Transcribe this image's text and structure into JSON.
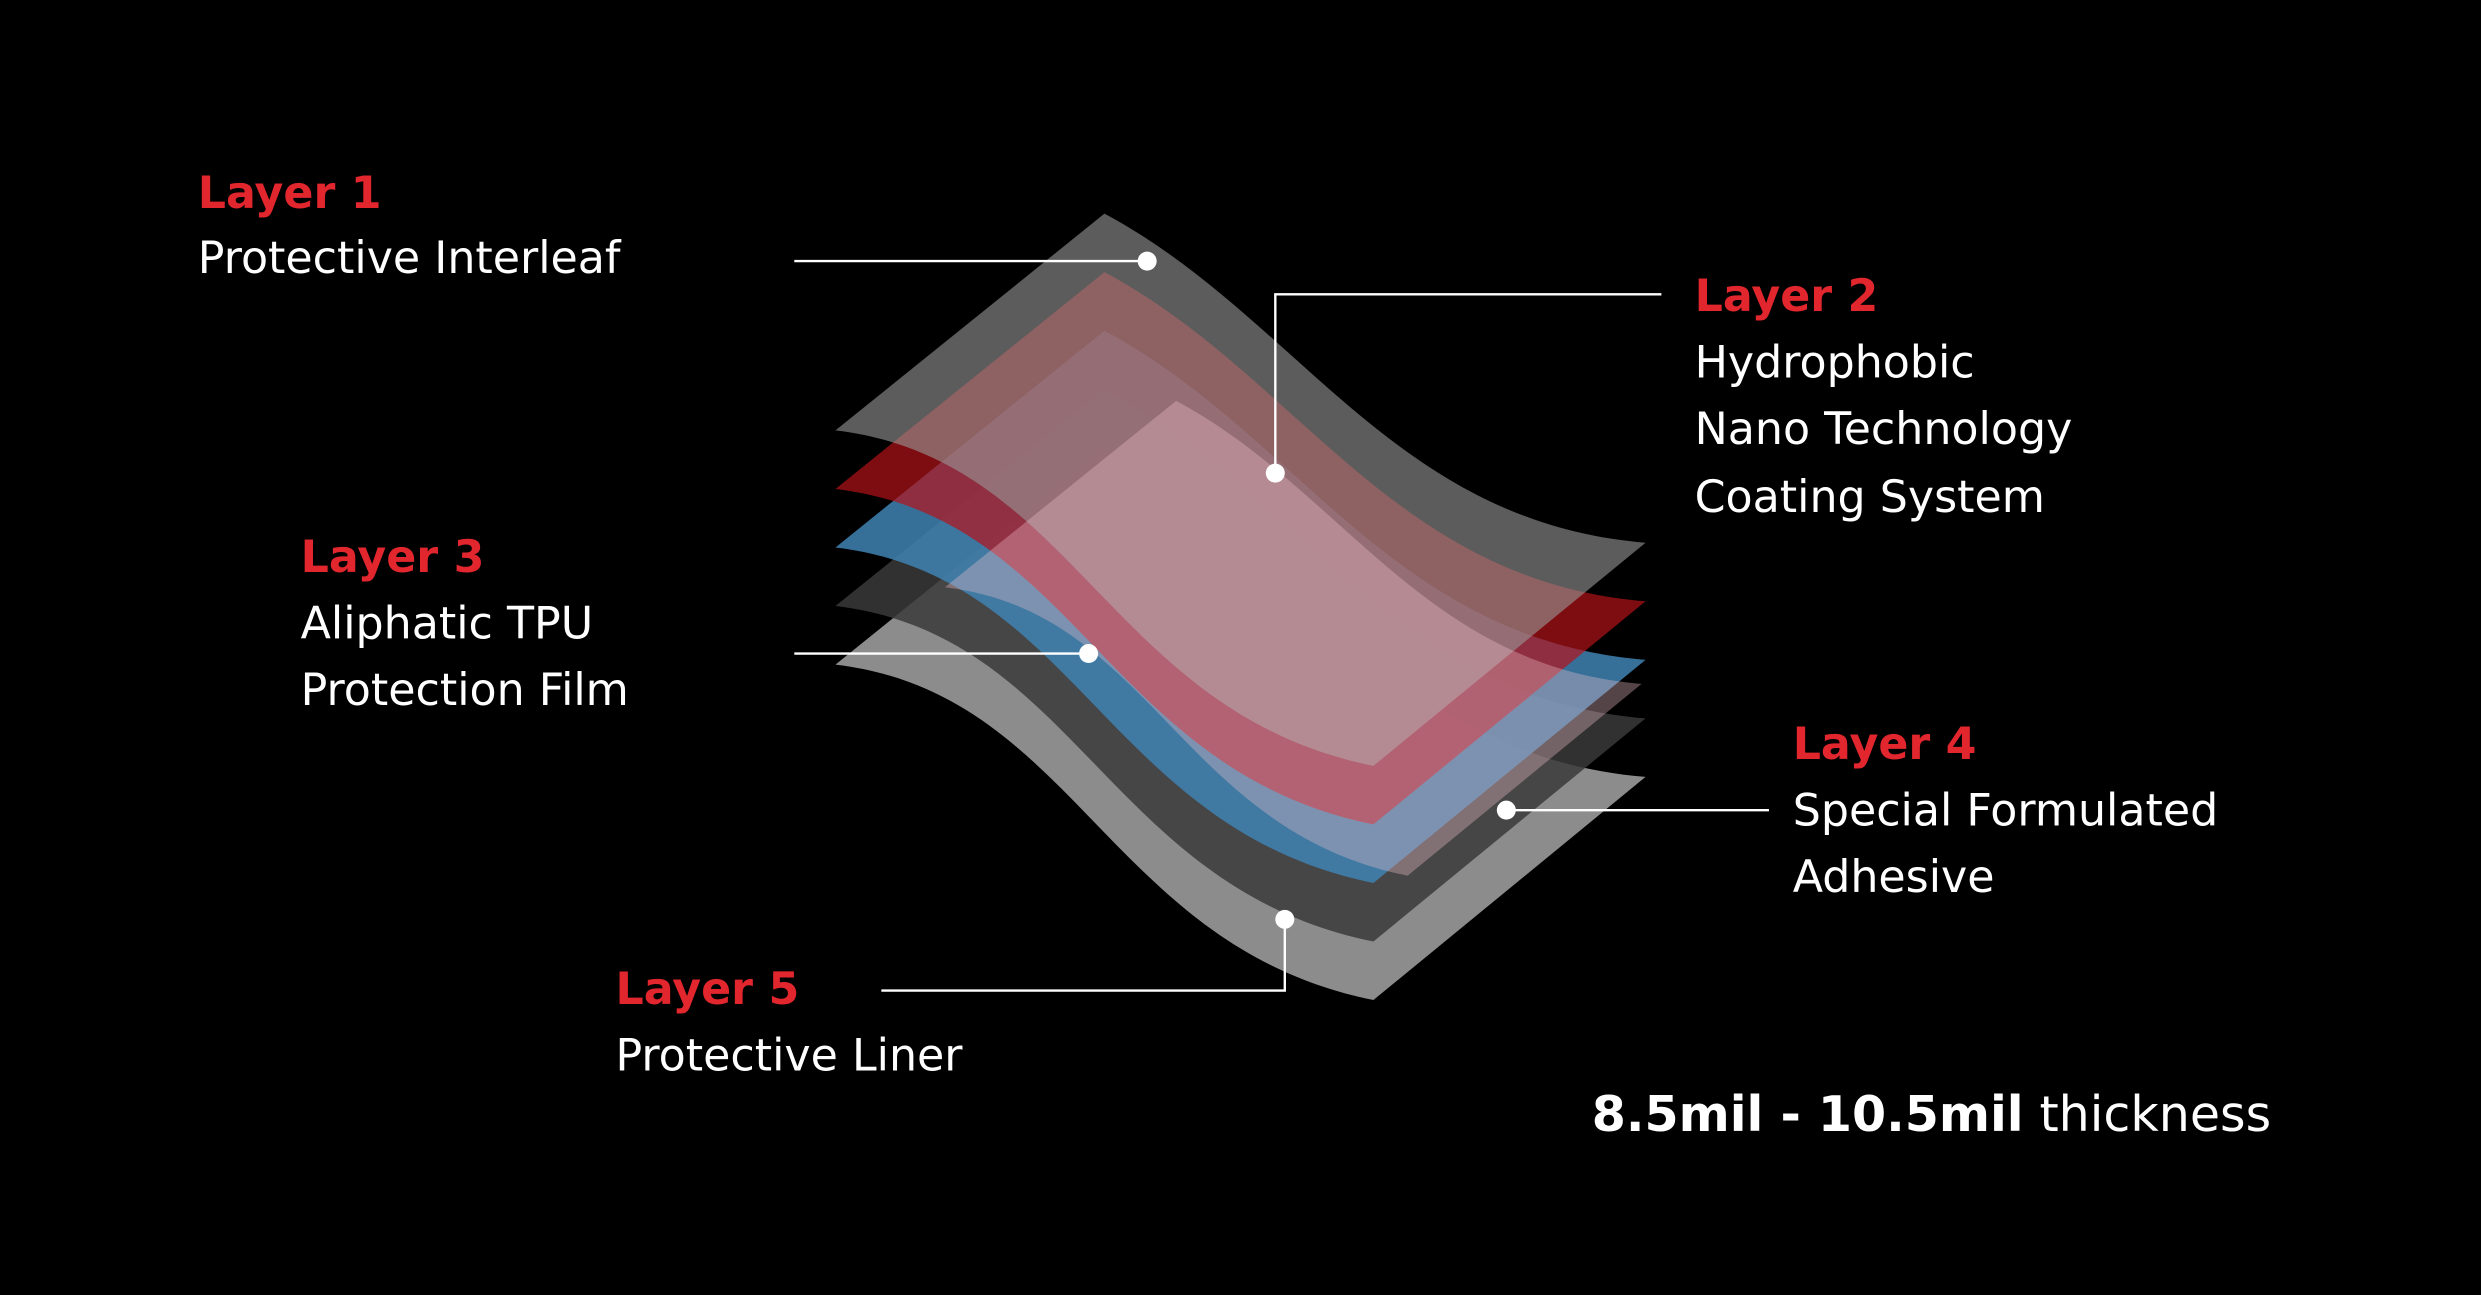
{
  "layers": [
    {
      "label": "Layer 1",
      "description": [
        "Protective Interleaf"
      ]
    },
    {
      "label": "Layer 2",
      "description": [
        "Hydrophobic",
        "Nano Technology",
        "Coating System"
      ]
    },
    {
      "label": "Layer 3",
      "description": [
        "Aliphatic TPU",
        "Protection Film"
      ]
    },
    {
      "label": "Layer 4",
      "description": [
        "Special Formulated",
        "Adhesive"
      ]
    },
    {
      "label": "Layer 5",
      "description": [
        "Protective Liner"
      ]
    }
  ],
  "thickness": {
    "range": "8.5mil - 10.5mil",
    "unit": "thickness"
  }
}
